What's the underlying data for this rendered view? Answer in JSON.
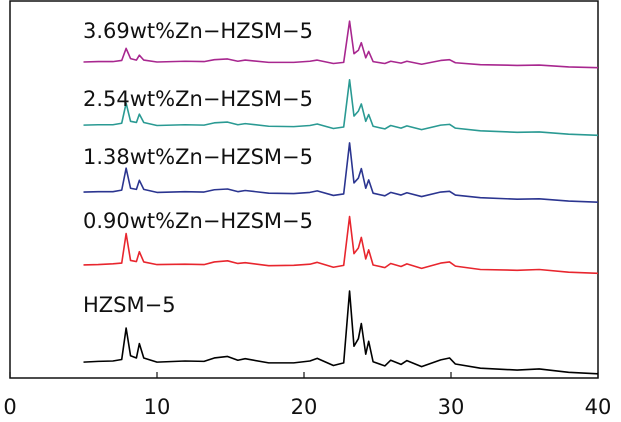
{
  "chart_data": {
    "type": "line",
    "x": [
      5,
      6,
      7,
      7.6,
      7.9,
      8.2,
      8.6,
      8.8,
      9.1,
      10,
      11.9,
      13.2,
      13.9,
      14.8,
      15.5,
      16,
      17.6,
      19.3,
      20.4,
      20.9,
      22,
      22.7,
      23.1,
      23.4,
      23.7,
      23.9,
      24.2,
      24.4,
      24.7,
      25.5,
      25.9,
      26.6,
      27,
      28,
      29.3,
      29.9,
      30.3,
      32,
      34.5,
      36,
      38,
      40
    ],
    "xlim": [
      0,
      40
    ],
    "xticks": [
      0,
      10,
      20,
      30,
      40
    ],
    "ylim": [
      0,
      100
    ],
    "series": [
      {
        "name": "HZSM−5",
        "color": "#000000",
        "values": [
          4.2,
          4.4,
          4.5,
          4.9,
          13.2,
          5.9,
          5.3,
          9.1,
          5.3,
          4.2,
          4.5,
          4.4,
          5.3,
          5.7,
          4.7,
          5.1,
          4.0,
          4.0,
          4.5,
          5.2,
          3.3,
          4.0,
          23.0,
          8.4,
          10.4,
          14.4,
          6.3,
          9.7,
          4.3,
          3.2,
          4.7,
          3.6,
          4.6,
          3.0,
          4.8,
          5.3,
          3.7,
          2.6,
          2.1,
          2.4,
          1.5,
          1.1
        ]
      },
      {
        "name": "0.90wt%Zn−HZSM−5",
        "color": "#e8262e",
        "values": [
          29.9,
          30.0,
          30.2,
          30.4,
          38.2,
          31.1,
          30.8,
          33.4,
          30.7,
          30.0,
          30.1,
          30.0,
          30.7,
          31.0,
          30.3,
          30.5,
          29.7,
          29.8,
          30.1,
          30.6,
          29.3,
          29.8,
          42.7,
          32.9,
          34.4,
          37.2,
          31.5,
          33.9,
          29.9,
          29.2,
          30.3,
          29.5,
          30.2,
          29.0,
          30.4,
          30.7,
          29.6,
          28.7,
          28.5,
          28.7,
          28.0,
          27.7
        ]
      },
      {
        "name": "1.38wt%Zn−HZSM−5",
        "color": "#2b3590",
        "values": [
          49.2,
          49.3,
          49.3,
          49.7,
          55.5,
          50.2,
          49.9,
          52.3,
          49.9,
          49.1,
          49.3,
          49.2,
          49.8,
          50.0,
          49.3,
          49.6,
          48.9,
          48.8,
          49.1,
          49.5,
          48.3,
          48.7,
          62.2,
          51.6,
          52.9,
          55.4,
          50.2,
          52.4,
          48.9,
          48.2,
          49.1,
          48.4,
          49.0,
          48.0,
          49.2,
          49.4,
          48.4,
          47.7,
          47.3,
          47.4,
          46.8,
          46.5
        ]
      },
      {
        "name": "2.54wt%Zn−HZSM−5",
        "color": "#2a9a93",
        "values": [
          66.9,
          67.0,
          67.0,
          67.4,
          72.7,
          67.9,
          67.6,
          69.8,
          67.6,
          66.8,
          67.0,
          66.9,
          67.5,
          67.7,
          67.0,
          67.3,
          66.6,
          66.5,
          66.8,
          67.2,
          66.0,
          66.4,
          78.9,
          69.3,
          70.6,
          72.5,
          67.9,
          69.7,
          66.6,
          65.9,
          66.8,
          66.1,
          66.7,
          65.7,
          66.9,
          67.1,
          66.1,
          65.4,
          65.0,
          65.1,
          64.5,
          64.2
        ]
      },
      {
        "name": "3.69wt%Zn−HZSM−5",
        "color": "#a8278f",
        "values": [
          83.6,
          83.7,
          83.7,
          84.0,
          87.2,
          84.5,
          84.1,
          85.4,
          84.1,
          83.6,
          83.8,
          83.7,
          84.2,
          84.4,
          83.8,
          84.1,
          83.5,
          83.5,
          83.8,
          84.1,
          83.2,
          83.5,
          94.4,
          85.8,
          86.7,
          88.7,
          84.7,
          86.4,
          83.7,
          83.2,
          83.8,
          83.3,
          83.8,
          83.0,
          84.0,
          84.2,
          83.4,
          82.9,
          82.7,
          82.8,
          82.3,
          82.1
        ]
      }
    ]
  }
}
